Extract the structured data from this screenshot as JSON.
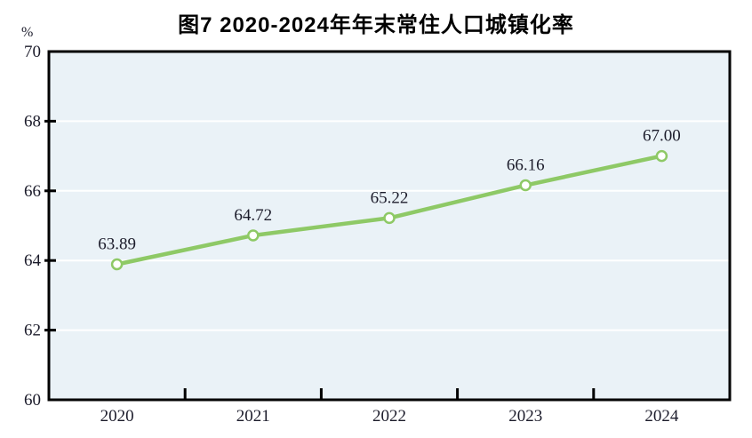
{
  "title": "图7  2020-2024年年末常住人口城镇化率",
  "chart_data": {
    "type": "line",
    "title": "图7  2020-2024年年末常住人口城镇化率",
    "categories": [
      "2020",
      "2021",
      "2022",
      "2023",
      "2024"
    ],
    "series": [
      {
        "name": "年末常住人口城镇化率",
        "values": [
          63.89,
          64.72,
          65.22,
          66.16,
          67.0
        ]
      }
    ],
    "point_labels": [
      "63.89",
      "64.72",
      "65.22",
      "66.16",
      "67.00"
    ],
    "xlabel": "",
    "ylabel": "%",
    "ylim": [
      60,
      70
    ],
    "yticks": [
      60,
      62,
      64,
      66,
      68,
      70
    ],
    "grid": "horizontal",
    "legend_position": "none",
    "colors": {
      "line": "#8ec966",
      "marker_fill": "#ffffff",
      "marker_stroke": "#8ec966",
      "plot_bg": "#eaf2f7",
      "grid": "#ffffff",
      "axis": "#000000",
      "text": "#1c1c2b"
    }
  }
}
